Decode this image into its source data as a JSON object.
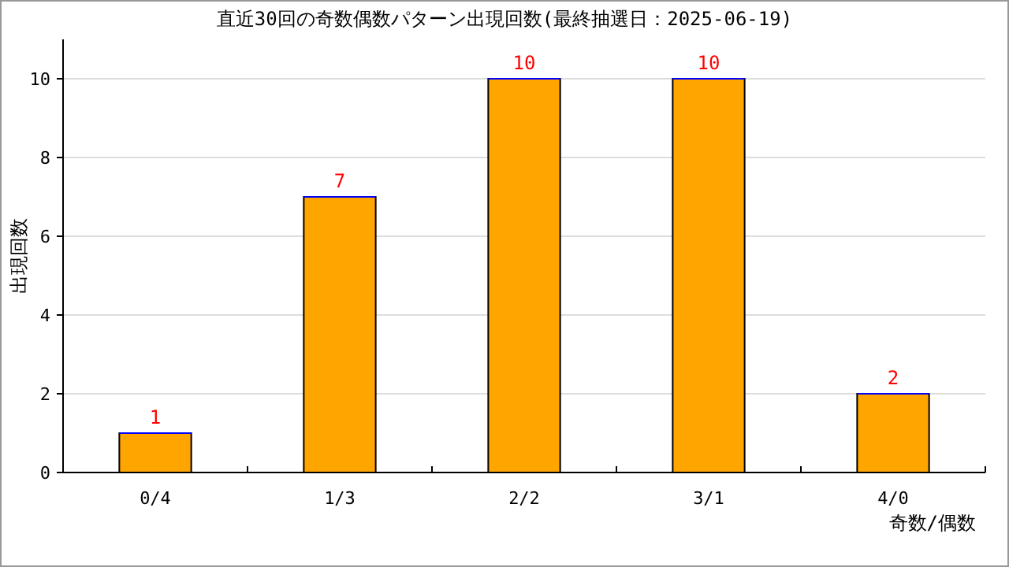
{
  "chart_data": {
    "type": "bar",
    "title": "直近30回の奇数偶数パターン出現回数(最終抽選日：2025-06-19)",
    "xlabel": "奇数/偶数",
    "ylabel": "出現回数",
    "categories": [
      "0/4",
      "1/3",
      "2/2",
      "3/1",
      "4/0"
    ],
    "values": [
      1,
      7,
      10,
      10,
      2
    ],
    "color": "#ffa500",
    "ylim": [
      0,
      11
    ],
    "yticks": [
      0,
      2,
      4,
      6,
      8,
      10
    ],
    "grid": "y",
    "data_labels": true
  }
}
